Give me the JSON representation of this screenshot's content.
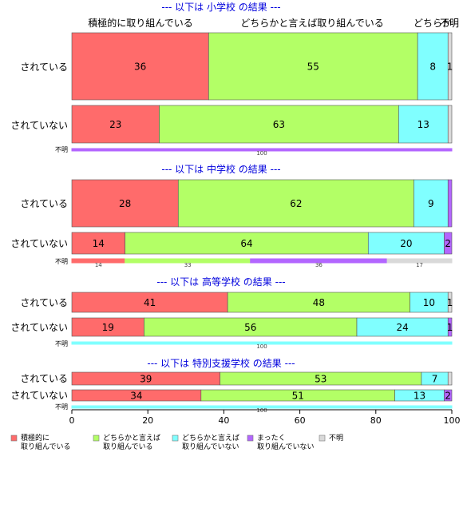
{
  "chart_data": {
    "type": "bar",
    "orientation": "horizontal",
    "stacked": true,
    "xlim": [
      0,
      100
    ],
    "xticks": [
      0,
      20,
      40,
      60,
      80,
      100
    ],
    "grid": false,
    "legend_position": "bottom",
    "colors": {
      "active": "#ff6b6b",
      "somewhat": "#b3ff66",
      "somewhat_not": "#80ffff",
      "not_at_all": "#b366ff",
      "unknown": "#d9d9d9"
    },
    "top_labels": [
      "積極的に取り組んでいる",
      "どちらかと言えば取り組んでいる",
      "どちらか",
      "不明"
    ],
    "legend": [
      {
        "key": "active",
        "line1": "積極的に",
        "line2": "取り組んでいる"
      },
      {
        "key": "somewhat",
        "line1": "どちらかと言えば",
        "line2": "取り組んでいる"
      },
      {
        "key": "somewhat_not",
        "line1": "どちらかと言えば",
        "line2": "取り組んでいない"
      },
      {
        "key": "not_at_all",
        "line1": "まったく",
        "line2": "取り組んでいない"
      },
      {
        "key": "unknown",
        "line1": "不明",
        "line2": ""
      }
    ],
    "panels": [
      {
        "title": "--- 以下は 小学校 の結果 ---",
        "rows": [
          {
            "label": "されている",
            "values": [
              36,
              55,
              8,
              0,
              1
            ],
            "labels": [
              "36",
              "55",
              "8",
              "",
              "1"
            ]
          },
          {
            "label": "されていない",
            "values": [
              23,
              63,
              13,
              0,
              1
            ],
            "labels": [
              "23",
              "63",
              "13",
              "",
              ""
            ]
          },
          {
            "label": "不明",
            "values": [
              0,
              0,
              0,
              100,
              0
            ],
            "labels": [
              "",
              "",
              "",
              "100",
              ""
            ]
          }
        ]
      },
      {
        "title": "--- 以下は 中学校 の結果 ---",
        "rows": [
          {
            "label": "されている",
            "values": [
              28,
              62,
              9,
              1,
              0
            ],
            "labels": [
              "28",
              "62",
              "9",
              "",
              ""
            ]
          },
          {
            "label": "されていない",
            "values": [
              14,
              64,
              20,
              2,
              0
            ],
            "labels": [
              "14",
              "64",
              "20",
              "2",
              ""
            ]
          },
          {
            "label": "不明",
            "values": [
              14,
              33,
              0,
              36,
              17
            ],
            "labels": [
              "14",
              "33",
              "",
              "36",
              "17"
            ]
          }
        ]
      },
      {
        "title": "--- 以下は 高等学校 の結果 ---",
        "rows": [
          {
            "label": "されている",
            "values": [
              41,
              48,
              10,
              0,
              1
            ],
            "labels": [
              "41",
              "48",
              "10",
              "",
              "1"
            ]
          },
          {
            "label": "されていない",
            "values": [
              19,
              56,
              24,
              1,
              0
            ],
            "labels": [
              "19",
              "56",
              "24",
              "1",
              ""
            ]
          },
          {
            "label": "不明",
            "values": [
              0,
              0,
              100,
              0,
              0
            ],
            "labels": [
              "",
              "",
              "100",
              "",
              ""
            ]
          }
        ]
      },
      {
        "title": "--- 以下は 特別支援学校 の結果 ---",
        "rows": [
          {
            "label": "されている",
            "values": [
              39,
              53,
              7,
              0,
              1
            ],
            "labels": [
              "39",
              "53",
              "7",
              "",
              ""
            ]
          },
          {
            "label": "されていない",
            "values": [
              34,
              51,
              13,
              2,
              0
            ],
            "labels": [
              "34",
              "51",
              "13",
              "2",
              ""
            ]
          },
          {
            "label": "不明",
            "values": [
              0,
              0,
              100,
              0,
              0
            ],
            "labels": [
              "",
              "",
              "100",
              "",
              ""
            ]
          }
        ]
      }
    ]
  }
}
